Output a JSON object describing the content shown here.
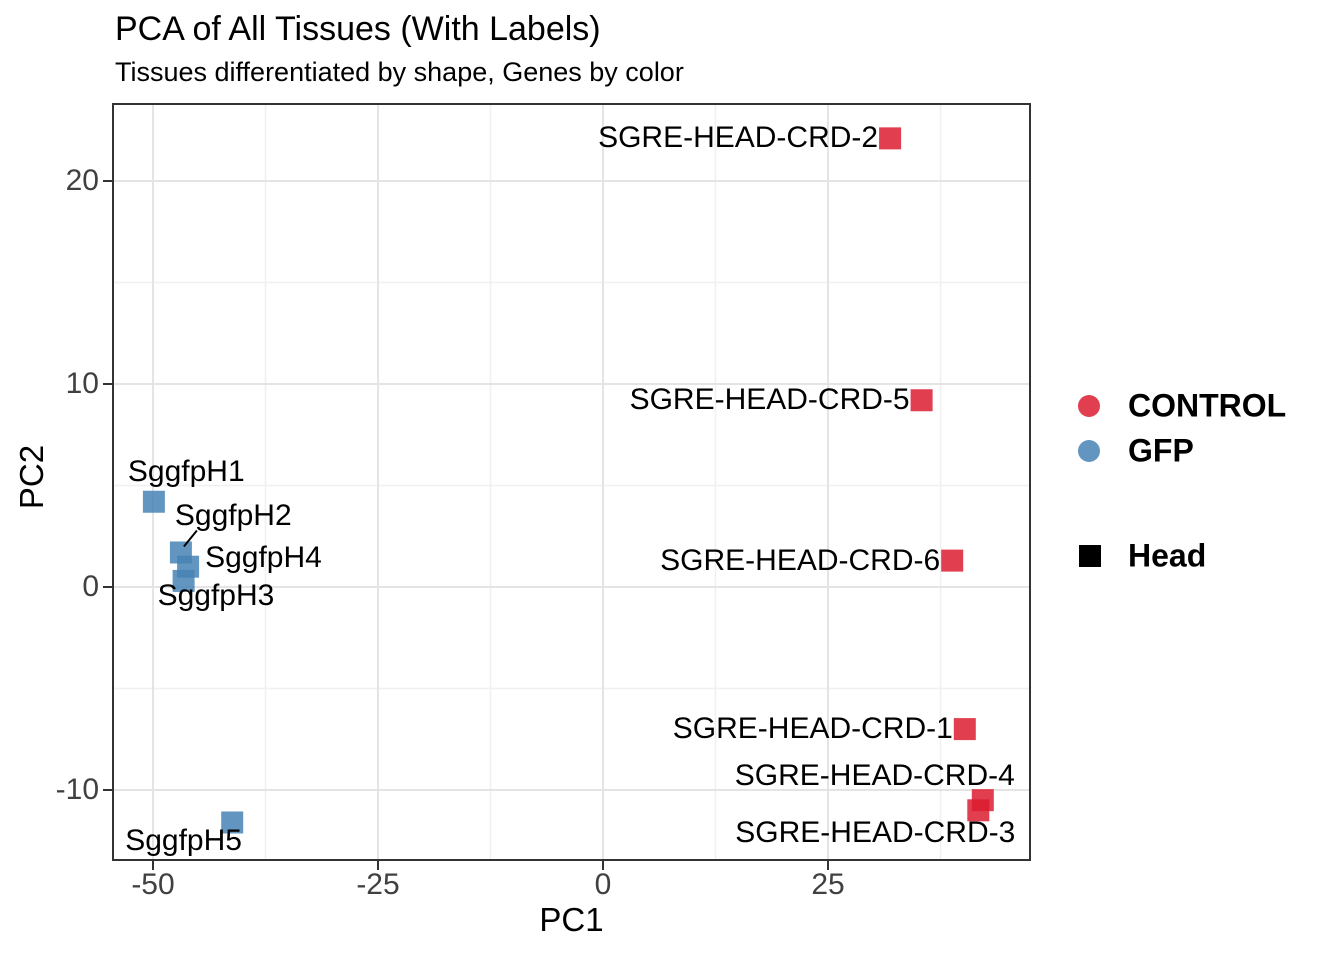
{
  "chart_data": {
    "type": "scatter",
    "title": "PCA of All Tissues (With Labels)",
    "subtitle": "Tissues differentiated by shape, Genes by color",
    "xlabel": "PC1",
    "ylabel": "PC2",
    "xlim": [
      -54.4,
      47.4
    ],
    "ylim": [
      -13.4,
      23.9
    ],
    "x_ticks": [
      -50,
      -25,
      0,
      25
    ],
    "y_ticks": [
      20,
      10,
      0,
      -10
    ],
    "x_minor_ticks": [
      -37.5,
      -12.5,
      12.5,
      37.5
    ],
    "y_minor_ticks": [
      15,
      5,
      -5
    ],
    "grid": true,
    "point_shape": "square",
    "legend": {
      "position": "right",
      "color_items": [
        {
          "label": "CONTROL",
          "color": "#DC1C30"
        },
        {
          "label": "GFP",
          "color": "#4682B4"
        }
      ],
      "shape_items": [
        {
          "label": "Head",
          "shape": "square",
          "color": "#000000"
        }
      ]
    },
    "series": [
      {
        "name": "GFP",
        "color": "#4682B4",
        "shape": "square",
        "points": [
          {
            "label": "SggfpH1",
            "x": -49.9,
            "y": 4.2,
            "label_align": "left",
            "label_dx": -26,
            "label_dy": -30
          },
          {
            "label": "SggfpH2",
            "x": -46.9,
            "y": 1.7,
            "label_align": "left",
            "label_dx": -6,
            "label_dy": -36,
            "leader": [
              16,
              -22,
              3,
              -6
            ]
          },
          {
            "label": "SggfpH4",
            "x": -46.1,
            "y": 1.0,
            "label_align": "left",
            "label_dx": 17,
            "label_dy": -9
          },
          {
            "label": "SggfpH3",
            "x": -46.6,
            "y": 0.3,
            "label_align": "left",
            "label_dx": -26,
            "label_dy": 15
          },
          {
            "label": "SggfpH5",
            "x": -41.2,
            "y": -11.6,
            "label_align": "left",
            "label_dx": -107,
            "label_dy": 19
          }
        ]
      },
      {
        "name": "CONTROL",
        "color": "#DC1C30",
        "shape": "square",
        "points": [
          {
            "label": "SGRE-HEAD-CRD-2",
            "x": 31.9,
            "y": 22.1,
            "label_align": "right",
            "label_dx": -12,
            "label_dy": 0
          },
          {
            "label": "SGRE-HEAD-CRD-5",
            "x": 35.4,
            "y": 9.2,
            "label_align": "right",
            "label_dx": -12,
            "label_dy": 0
          },
          {
            "label": "SGRE-HEAD-CRD-6",
            "x": 38.8,
            "y": 1.3,
            "label_align": "right",
            "label_dx": -12,
            "label_dy": 0
          },
          {
            "label": "SGRE-HEAD-CRD-1",
            "x": 40.2,
            "y": -7.0,
            "label_align": "right",
            "label_dx": -12,
            "label_dy": 0
          },
          {
            "label": "SGRE-HEAD-CRD-4",
            "x": 42.2,
            "y": -10.5,
            "label_align": "right",
            "label_dx": 32,
            "label_dy": -24
          },
          {
            "label": "SGRE-HEAD-CRD-3",
            "x": 41.7,
            "y": -11.0,
            "label_align": "right",
            "label_dx": 37,
            "label_dy": 23
          }
        ]
      }
    ]
  }
}
